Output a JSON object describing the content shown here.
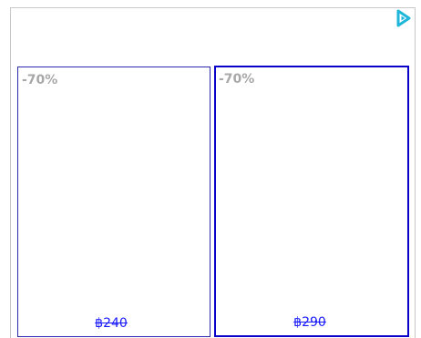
{
  "ad": {
    "choices_icon": "adchoices-play-icon",
    "accent_color": "#0a00c8",
    "icon_color": "#1fb6d9"
  },
  "products": [
    {
      "discount": "-70%",
      "old_price": "฿240"
    },
    {
      "discount": "-70%",
      "old_price": "฿290"
    }
  ]
}
